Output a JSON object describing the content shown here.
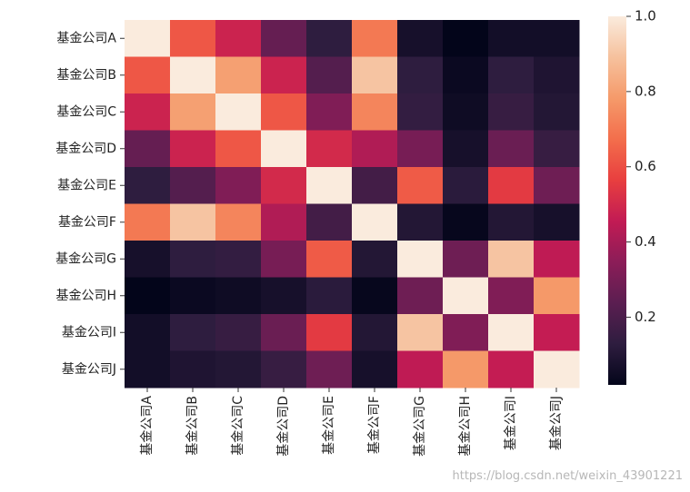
{
  "chart_data": {
    "type": "heatmap",
    "title": "",
    "labels": [
      "基金公司A",
      "基金公司B",
      "基金公司C",
      "基金公司D",
      "基金公司E",
      "基金公司F",
      "基金公司G",
      "基金公司H",
      "基金公司I",
      "基金公司J"
    ],
    "matrix": [
      [
        1.0,
        0.62,
        0.48,
        0.26,
        0.13,
        0.7,
        0.07,
        0.02,
        0.06,
        0.06
      ],
      [
        0.62,
        1.0,
        0.8,
        0.48,
        0.22,
        0.9,
        0.13,
        0.04,
        0.13,
        0.09
      ],
      [
        0.48,
        0.8,
        1.0,
        0.62,
        0.32,
        0.73,
        0.14,
        0.05,
        0.15,
        0.1
      ],
      [
        0.26,
        0.48,
        0.62,
        1.0,
        0.5,
        0.42,
        0.3,
        0.07,
        0.27,
        0.15
      ],
      [
        0.13,
        0.22,
        0.32,
        0.5,
        1.0,
        0.18,
        0.63,
        0.12,
        0.55,
        0.28
      ],
      [
        0.7,
        0.9,
        0.73,
        0.42,
        0.18,
        1.0,
        0.1,
        0.03,
        0.1,
        0.07
      ],
      [
        0.07,
        0.13,
        0.14,
        0.3,
        0.63,
        0.1,
        1.0,
        0.28,
        0.9,
        0.45
      ],
      [
        0.02,
        0.04,
        0.05,
        0.07,
        0.12,
        0.03,
        0.28,
        1.0,
        0.32,
        0.78
      ],
      [
        0.06,
        0.13,
        0.15,
        0.27,
        0.55,
        0.1,
        0.9,
        0.32,
        1.0,
        0.46
      ],
      [
        0.06,
        0.09,
        0.1,
        0.15,
        0.28,
        0.07,
        0.45,
        0.78,
        0.46,
        1.0
      ]
    ],
    "colorbar": {
      "min": 0.02,
      "max": 1.0,
      "ticks": [
        "0.2",
        "0.4",
        "0.6",
        "0.8",
        "1.0"
      ],
      "tick_values": [
        0.2,
        0.4,
        0.6,
        0.8,
        1.0
      ]
    },
    "colormap_stops": [
      "#03051a",
      "#2e1d3f",
      "#5b1e51",
      "#8c1d58",
      "#c21b54",
      "#e83f3f",
      "#f36e4c",
      "#f59a6a",
      "#f6c19d",
      "#faebdd"
    ]
  },
  "watermark": "https://blog.csdn.net/weixin_43901221"
}
